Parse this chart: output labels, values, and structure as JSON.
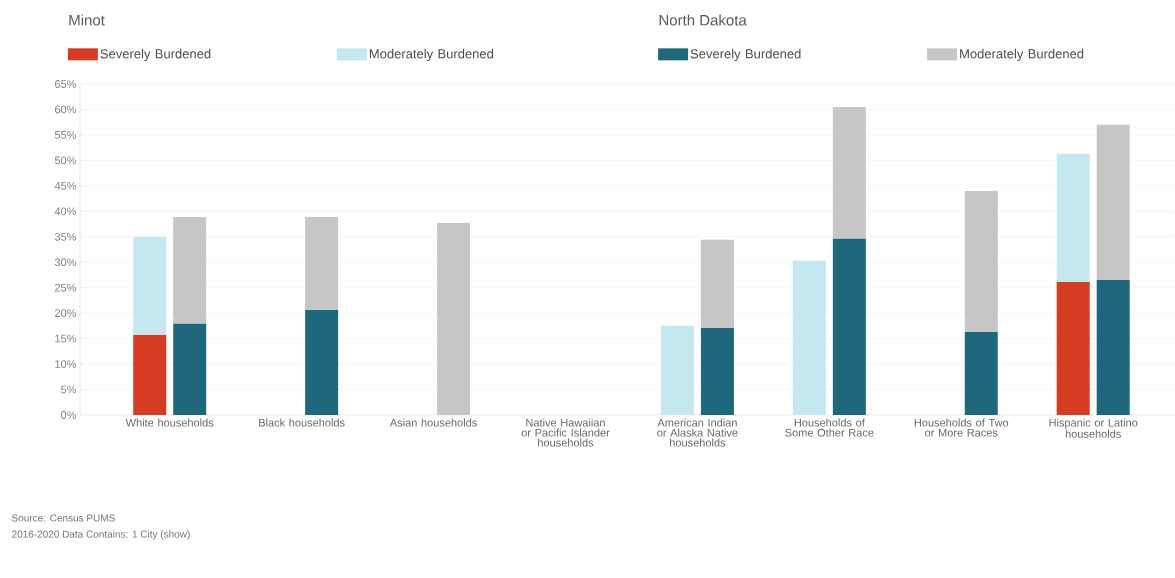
{
  "chart_data": [
    {
      "type": "bar",
      "stacked": true,
      "legend_title": "Minot",
      "legend": "top left",
      "categories": [
        "White households",
        "Black households",
        "Asian households",
        "Native Hawaiian or Pacific Islander households",
        "American Indian or Alaska Native households",
        "Households of Some Other Race",
        "Households of Two or More Races",
        "Hispanic or Latino households"
      ],
      "series": [
        {
          "name": "Severely Burdened",
          "color": "#d63c21",
          "values": [
            15.7,
            null,
            null,
            null,
            null,
            null,
            null,
            26.1
          ]
        },
        {
          "name": "Moderately Burdened",
          "color": "#c5e7f0",
          "values": [
            19.3,
            null,
            null,
            null,
            17.5,
            30.3,
            null,
            25.2
          ]
        }
      ],
      "ylim": [
        0,
        65
      ],
      "yticks": [
        {
          "value": 0,
          "label": "0%"
        },
        {
          "value": 5,
          "label": "5%"
        },
        {
          "value": 10,
          "label": "10%"
        },
        {
          "value": 15,
          "label": "15%"
        },
        {
          "value": 20,
          "label": "20%"
        },
        {
          "value": 25,
          "label": "25%"
        },
        {
          "value": 30,
          "label": "30%"
        },
        {
          "value": 35,
          "label": "35%"
        },
        {
          "value": 40,
          "label": "40%"
        },
        {
          "value": 45,
          "label": "45%"
        },
        {
          "value": 50,
          "label": "50%"
        },
        {
          "value": 55,
          "label": "55%"
        },
        {
          "value": 60,
          "label": "60%"
        },
        {
          "value": 65,
          "label": "65%"
        }
      ],
      "grid": "y",
      "annotations": [
        "Source: Census PUMS",
        "2016-2020 Data Contains: 1 City (show)"
      ]
    },
    {
      "type": "bar",
      "stacked": true,
      "legend_title": "North Dakota",
      "legend": "top right",
      "tick_labels": false,
      "categories": [
        null,
        null,
        null,
        null,
        null,
        null,
        null,
        null
      ],
      "series": [
        {
          "name": "Severely Burdened",
          "color": "#1f687c",
          "values": [
            17.9,
            20.6,
            null,
            null,
            17.1,
            34.6,
            16.3,
            26.5
          ]
        },
        {
          "name": "Moderately Burdened",
          "color": "#c6c6c6",
          "values": [
            21.0,
            18.3,
            37.7,
            null,
            17.3,
            25.9,
            27.7,
            30.5
          ]
        }
      ],
      "ylim": [
        0,
        65
      ]
    }
  ]
}
